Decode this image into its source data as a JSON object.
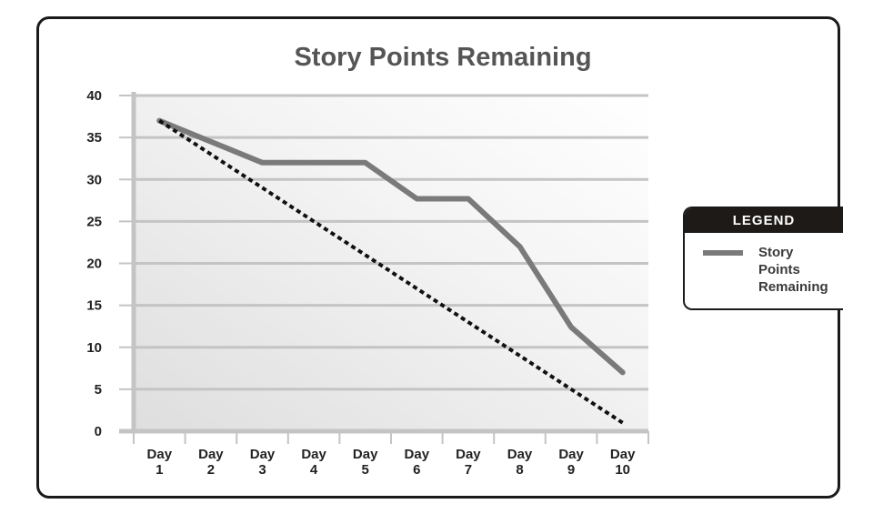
{
  "chart_data": {
    "type": "line",
    "title": "Story Points Remaining",
    "categories": [
      [
        "Day",
        "1"
      ],
      [
        "Day",
        "2"
      ],
      [
        "Day",
        "3"
      ],
      [
        "Day",
        "4"
      ],
      [
        "Day",
        "5"
      ],
      [
        "Day",
        "6"
      ],
      [
        "Day",
        "7"
      ],
      [
        "Day",
        "8"
      ],
      [
        "Day",
        "9"
      ],
      [
        "Day",
        "10"
      ]
    ],
    "xlabel": "",
    "ylabel": "",
    "ylim": [
      0,
      40
    ],
    "yticks": [
      0,
      5,
      10,
      15,
      20,
      25,
      30,
      35,
      40
    ],
    "grid": true,
    "series": [
      {
        "name": "Story Points Remaining",
        "style": "solid",
        "color": "#7a7a7a",
        "values": [
          37,
          34.5,
          32,
          32,
          32,
          27.7,
          27.7,
          22,
          12.4,
          7
        ]
      },
      {
        "style": "dashed",
        "color": "#111111",
        "values": [
          37,
          33,
          29,
          25,
          21,
          17,
          13,
          9,
          5,
          1
        ]
      }
    ],
    "legend": {
      "title": "LEGEND",
      "placement": "right",
      "entries": [
        "Story Points Remaining"
      ]
    }
  }
}
